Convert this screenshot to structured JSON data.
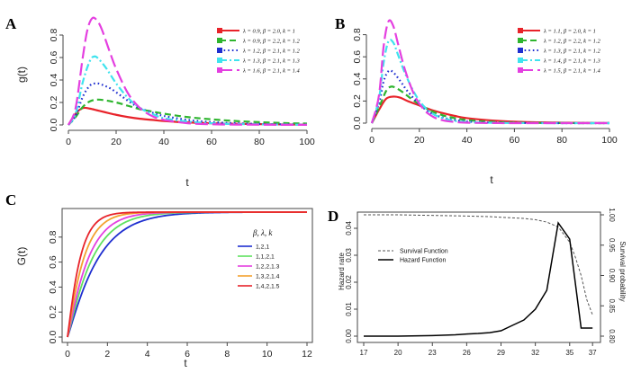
{
  "colors": {
    "red": "#e8232a",
    "green": "#2fb52f",
    "blue": "#1f2fd0",
    "cyan": "#3fe3ee",
    "magenta": "#e43fe0",
    "orange": "#f3a12f",
    "lightgreen": "#5fe15f"
  },
  "chart_data": [
    {
      "id": "A",
      "type": "line",
      "panel_label": "A",
      "xlabel": "t",
      "ylabel": "g(t)",
      "xlim": [
        0,
        100
      ],
      "ylim": [
        0,
        1.0
      ],
      "xticks": [
        "0",
        "20",
        "40",
        "60",
        "80",
        "100"
      ],
      "yticks": [
        "0.0",
        "0.2",
        "0.4",
        "0.6",
        "0.8"
      ],
      "series": [
        {
          "name": "λ = 0.9, β = 2.0, k = 1",
          "style": "solid",
          "color": "#e8232a",
          "x": [
            0,
            3,
            6,
            9,
            12,
            15,
            20,
            25,
            30,
            35,
            40,
            50,
            60,
            70,
            80,
            90,
            100
          ],
          "y": [
            0,
            0.1,
            0.15,
            0.145,
            0.13,
            0.115,
            0.09,
            0.07,
            0.055,
            0.045,
            0.035,
            0.022,
            0.015,
            0.01,
            0.007,
            0.005,
            0.003
          ]
        },
        {
          "name": "λ = 0.9, β = 2.2, k = 1.2",
          "style": "dashed",
          "color": "#2fb52f",
          "x": [
            0,
            3,
            6,
            9,
            12,
            15,
            20,
            25,
            30,
            35,
            40,
            50,
            60,
            70,
            80,
            90,
            100
          ],
          "y": [
            0,
            0.07,
            0.16,
            0.21,
            0.225,
            0.22,
            0.2,
            0.17,
            0.14,
            0.12,
            0.1,
            0.07,
            0.05,
            0.035,
            0.025,
            0.017,
            0.012
          ]
        },
        {
          "name": "λ = 1.2, β = 2.1, k = 1.2",
          "style": "dotted",
          "color": "#1f2fd0",
          "x": [
            0,
            3,
            6,
            9,
            12,
            15,
            18,
            22,
            26,
            30,
            35,
            40,
            50,
            60,
            70,
            80,
            90,
            100
          ],
          "y": [
            0,
            0.08,
            0.25,
            0.35,
            0.37,
            0.35,
            0.32,
            0.26,
            0.2,
            0.15,
            0.11,
            0.08,
            0.045,
            0.025,
            0.015,
            0.009,
            0.005,
            0.003
          ]
        },
        {
          "name": "λ = 1.3, β = 2.1, k = 1.3",
          "style": "dashdot",
          "color": "#3fe3ee",
          "x": [
            0,
            3,
            6,
            9,
            11,
            13,
            16,
            20,
            25,
            30,
            35,
            40,
            50,
            60,
            70,
            80,
            90,
            100
          ],
          "y": [
            0,
            0.1,
            0.38,
            0.57,
            0.61,
            0.58,
            0.5,
            0.37,
            0.24,
            0.15,
            0.1,
            0.06,
            0.03,
            0.015,
            0.008,
            0.005,
            0.003,
            0.002
          ]
        },
        {
          "name": "λ = 1.6, β = 2.1, k = 1.4",
          "style": "longdash",
          "color": "#e43fe0",
          "x": [
            0,
            3,
            6,
            8,
            10,
            12,
            14,
            17,
            20,
            25,
            30,
            35,
            40,
            50,
            60,
            70,
            80,
            90,
            100
          ],
          "y": [
            0,
            0.15,
            0.6,
            0.85,
            0.95,
            0.93,
            0.85,
            0.67,
            0.5,
            0.28,
            0.15,
            0.08,
            0.045,
            0.015,
            0.006,
            0.003,
            0.002,
            0.001,
            0.001
          ]
        }
      ]
    },
    {
      "id": "B",
      "type": "line",
      "panel_label": "B",
      "xlabel": "t",
      "ylabel": "",
      "xlim": [
        0,
        100
      ],
      "ylim": [
        0,
        1.0
      ],
      "xticks": [
        "0",
        "20",
        "40",
        "60",
        "80",
        "100"
      ],
      "yticks": [
        "0.0",
        "0.2",
        "0.4",
        "0.6",
        "0.8"
      ],
      "series": [
        {
          "name": "λ = 1.1, β = 2.0, k = 1",
          "style": "solid",
          "color": "#e8232a",
          "x": [
            0,
            3,
            6,
            9,
            12,
            15,
            20,
            25,
            30,
            35,
            40,
            50,
            60,
            70,
            80,
            90,
            100
          ],
          "y": [
            0,
            0.12,
            0.22,
            0.24,
            0.23,
            0.2,
            0.16,
            0.12,
            0.09,
            0.065,
            0.045,
            0.025,
            0.013,
            0.007,
            0.004,
            0.002,
            0.001
          ]
        },
        {
          "name": "λ = 1.2, β = 2.2, k = 1.2",
          "style": "dashed",
          "color": "#2fb52f",
          "x": [
            0,
            3,
            6,
            8,
            10,
            13,
            16,
            20,
            25,
            30,
            35,
            40,
            50,
            60,
            70,
            80,
            90,
            100
          ],
          "y": [
            0,
            0.14,
            0.29,
            0.33,
            0.32,
            0.28,
            0.23,
            0.17,
            0.11,
            0.07,
            0.045,
            0.028,
            0.012,
            0.005,
            0.002,
            0.001,
            0,
            0
          ]
        },
        {
          "name": "λ = 1.3, β = 2.1, k = 1.2",
          "style": "dotted",
          "color": "#1f2fd0",
          "x": [
            0,
            3,
            5,
            7,
            9,
            12,
            15,
            20,
            25,
            30,
            35,
            40,
            50,
            60,
            70,
            80,
            90,
            100
          ],
          "y": [
            0,
            0.18,
            0.38,
            0.47,
            0.46,
            0.38,
            0.29,
            0.17,
            0.09,
            0.05,
            0.028,
            0.015,
            0.005,
            0.002,
            0.001,
            0,
            0,
            0
          ]
        },
        {
          "name": "λ = 1.4, β = 2.1, k = 1.3",
          "style": "dashdot",
          "color": "#3fe3ee",
          "x": [
            0,
            3,
            5,
            7,
            9,
            11,
            14,
            18,
            22,
            26,
            30,
            35,
            40,
            50,
            60,
            80,
            100
          ],
          "y": [
            0,
            0.22,
            0.55,
            0.74,
            0.73,
            0.62,
            0.45,
            0.27,
            0.15,
            0.08,
            0.045,
            0.02,
            0.01,
            0.003,
            0.001,
            0,
            0
          ]
        },
        {
          "name": "λ = 1.5, β = 2.1, k = 1.4",
          "style": "longdash",
          "color": "#e43fe0",
          "x": [
            0,
            3,
            5,
            7,
            9,
            11,
            14,
            18,
            22,
            26,
            30,
            35,
            40,
            50,
            60,
            80,
            100
          ],
          "y": [
            0,
            0.25,
            0.7,
            0.92,
            0.88,
            0.72,
            0.48,
            0.25,
            0.12,
            0.055,
            0.025,
            0.01,
            0.004,
            0.001,
            0,
            0,
            0
          ]
        }
      ]
    },
    {
      "id": "C",
      "type": "line",
      "panel_label": "C",
      "xlabel": "t",
      "ylabel": "G(t)",
      "xlim": [
        0,
        12
      ],
      "ylim": [
        0,
        1.0
      ],
      "xticks": [
        "0",
        "2",
        "4",
        "6",
        "8",
        "10",
        "12"
      ],
      "yticks": [
        "0.0",
        "0.2",
        "0.4",
        "0.6",
        "0.8"
      ],
      "legend_title": "β, λ, k",
      "series": [
        {
          "name": "1,2,1",
          "color": "#1f2fd0",
          "rate": 0.62
        },
        {
          "name": "1,1,2,1",
          "color": "#5fe15f",
          "rate": 0.78
        },
        {
          "name": "1,2,2,1.3",
          "color": "#e43fe0",
          "rate": 0.95
        },
        {
          "name": "1,3,2,1.4",
          "color": "#f3a12f",
          "rate": 1.25
        },
        {
          "name": "1,4,2,1.5",
          "color": "#e8232a",
          "rate": 1.65
        }
      ]
    },
    {
      "id": "D",
      "type": "line",
      "panel_label": "D",
      "xlabel": "",
      "ylabel": "Hazard rate",
      "y2label": "Survival probability",
      "xticks": [
        "17",
        "20",
        "23",
        "26",
        "29",
        "32",
        "35",
        "37"
      ],
      "x": [
        17,
        18,
        19,
        20,
        21,
        22,
        23,
        24,
        25,
        26,
        27,
        28,
        29,
        30,
        31,
        32,
        33,
        34,
        35,
        36,
        37
      ],
      "yticks": [
        "0.00",
        "0.01",
        "0.02",
        "0.03",
        "0.04"
      ],
      "y2ticks": [
        "0.80",
        "0.85",
        "0.90",
        "0.95",
        "1.00"
      ],
      "ylim": [
        0,
        0.045
      ],
      "y2lim": [
        0.8,
        1.0
      ],
      "series": [
        {
          "name": "Survival Function",
          "style": "dashed",
          "color": "#555555",
          "axis": "right",
          "x": [
            17,
            20,
            23,
            26,
            28,
            29,
            30,
            31,
            32,
            33,
            34,
            35,
            35.5,
            36,
            36.5,
            37
          ],
          "y": [
            1.0,
            1.0,
            0.999,
            0.998,
            0.997,
            0.996,
            0.995,
            0.994,
            0.992,
            0.988,
            0.98,
            0.955,
            0.93,
            0.9,
            0.86,
            0.835
          ]
        },
        {
          "name": "Hazard Function",
          "style": "solid",
          "color": "#000000",
          "axis": "left",
          "x": [
            17,
            20,
            23,
            25,
            26,
            27,
            28,
            29,
            30,
            31,
            32,
            33,
            34,
            35,
            36,
            37
          ],
          "y": [
            0,
            0,
            0.0002,
            0.0005,
            0.0008,
            0.001,
            0.0013,
            0.002,
            0.004,
            0.006,
            0.01,
            0.017,
            0.042,
            0.036,
            0.003,
            0.003
          ]
        }
      ]
    }
  ]
}
